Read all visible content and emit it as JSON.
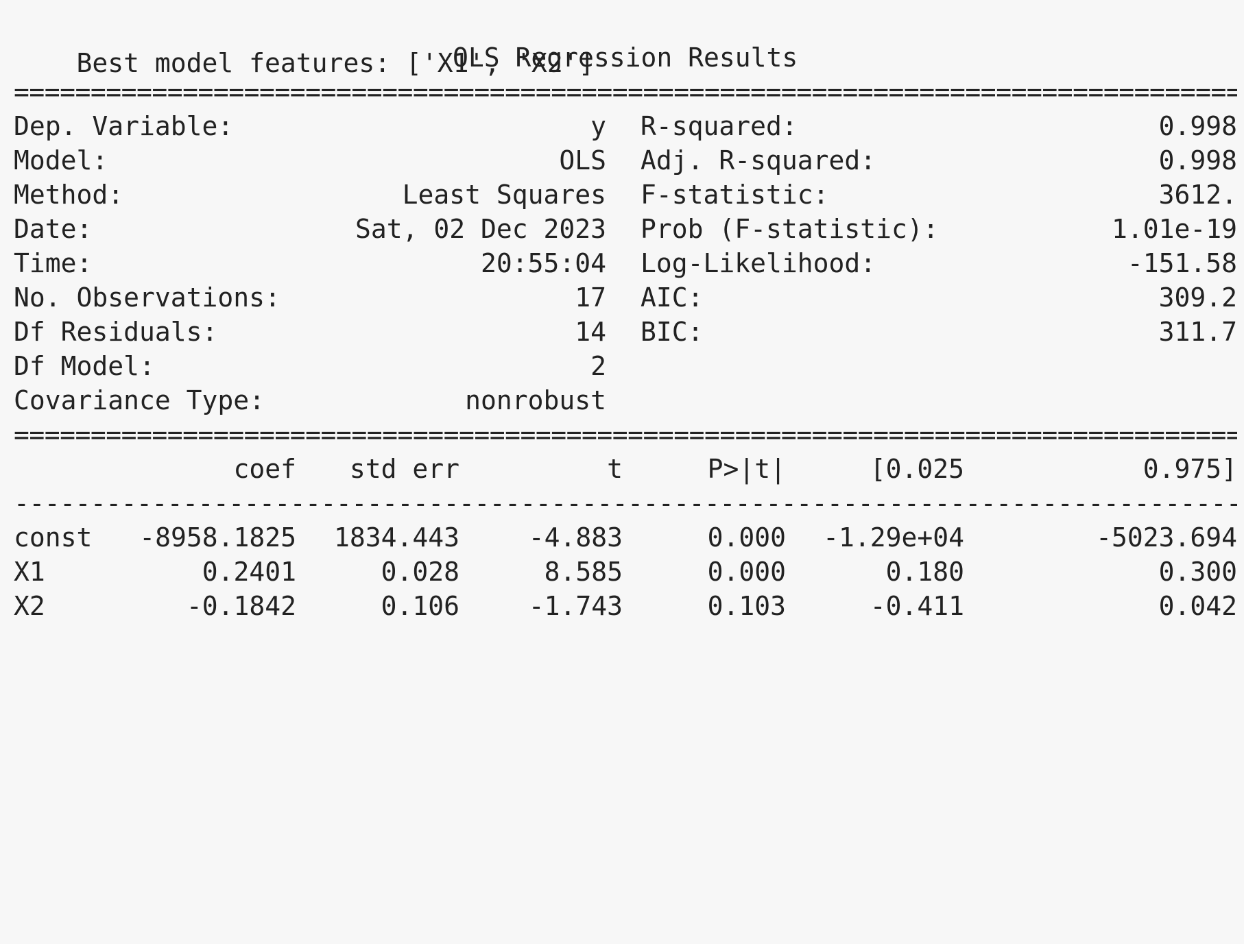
{
  "header": {
    "features_line": "Best model features: ['X1', 'X2']",
    "title": "OLS Regression Results"
  },
  "separators": {
    "double": "================================================================================",
    "single": "--------------------------------------------------------------------------------"
  },
  "summary": {
    "left": [
      {
        "label": "Dep. Variable:",
        "value": "y"
      },
      {
        "label": "Model:",
        "value": "OLS"
      },
      {
        "label": "Method:",
        "value": "Least Squares"
      },
      {
        "label": "Date:",
        "value": "Sat, 02 Dec 2023"
      },
      {
        "label": "Time:",
        "value": "20:55:04"
      },
      {
        "label": "No. Observations:",
        "value": "17"
      },
      {
        "label": "Df Residuals:",
        "value": "14"
      },
      {
        "label": "Df Model:",
        "value": "2"
      },
      {
        "label": "Covariance Type:",
        "value": "nonrobust"
      }
    ],
    "right": [
      {
        "label": "R-squared:",
        "value": "0.998"
      },
      {
        "label": "Adj. R-squared:",
        "value": "0.998"
      },
      {
        "label": "F-statistic:",
        "value": "3612."
      },
      {
        "label": "Prob (F-statistic):",
        "value": "1.01e-19"
      },
      {
        "label": "Log-Likelihood:",
        "value": "-151.58"
      },
      {
        "label": "AIC:",
        "value": "309.2"
      },
      {
        "label": "BIC:",
        "value": "311.7"
      }
    ]
  },
  "coef_table": {
    "headers": [
      "coef",
      "std err",
      "t",
      "P>|t|",
      "[0.025",
      "0.975]"
    ],
    "rows": [
      {
        "name": "const",
        "cells": [
          "-8958.1825",
          "1834.443",
          "-4.883",
          "0.000",
          "-1.29e+04",
          "-5023.694"
        ]
      },
      {
        "name": "X1",
        "cells": [
          "0.2401",
          "0.028",
          "8.585",
          "0.000",
          "0.180",
          "0.300"
        ]
      },
      {
        "name": "X2",
        "cells": [
          "-0.1842",
          "0.106",
          "-1.743",
          "0.103",
          "-0.411",
          "0.042"
        ]
      }
    ]
  }
}
